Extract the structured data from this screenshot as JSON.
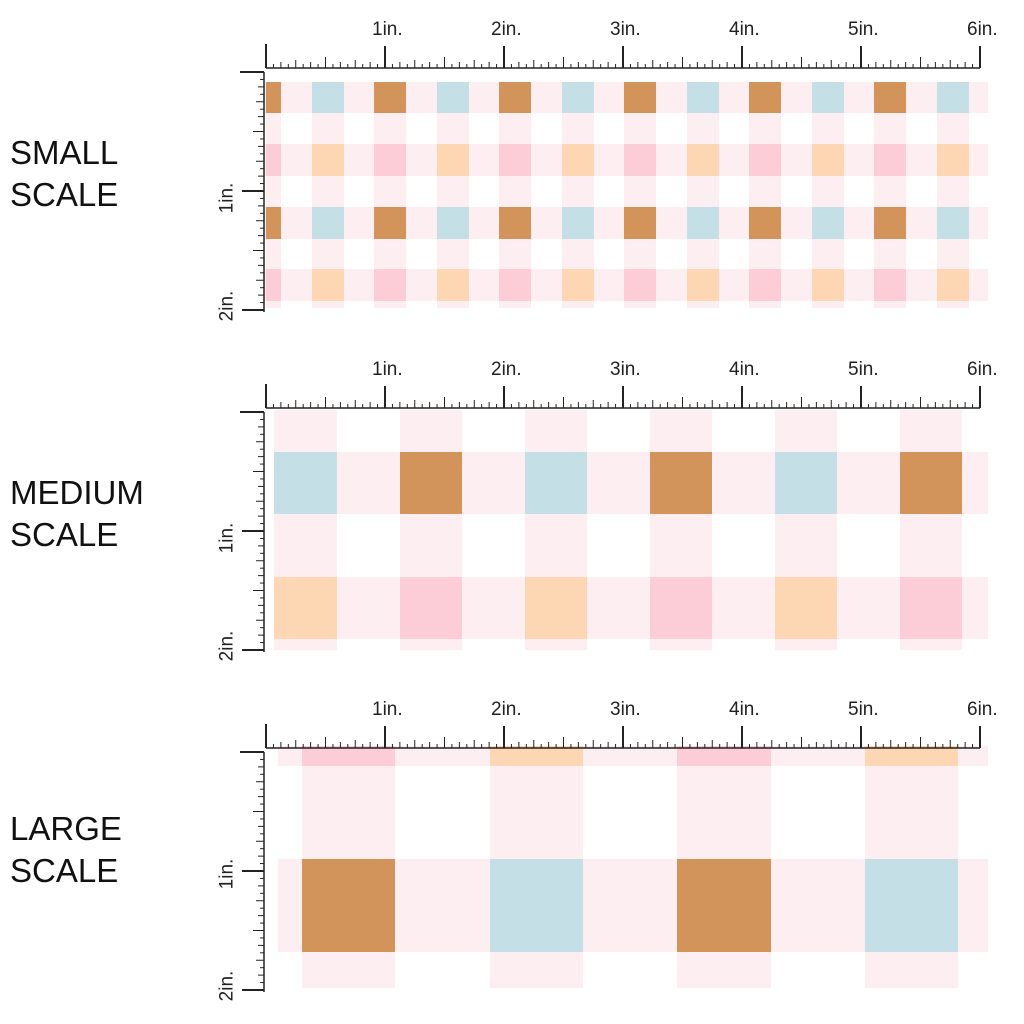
{
  "sections": [
    {
      "key": "small",
      "label_line1": "SMALL",
      "label_line2": "SCALE",
      "ruler_labels_top": [
        "1in.",
        "2in.",
        "3in.",
        "4in.",
        "5in.",
        "6in."
      ],
      "ruler_labels_side": [
        "1in.",
        "2in."
      ]
    },
    {
      "key": "medium",
      "label_line1": "MEDIUM",
      "label_line2": "SCALE",
      "ruler_labels_top": [
        "1in.",
        "2in.",
        "3in.",
        "4in.",
        "5in.",
        "6in."
      ],
      "ruler_labels_side": [
        "1in.",
        "2in."
      ]
    },
    {
      "key": "large",
      "label_line1": "LARGE",
      "label_line2": "SCALE",
      "ruler_labels_top": [
        "1in.",
        "2in.",
        "3in.",
        "4in.",
        "5in.",
        "6in."
      ],
      "ruler_labels_side": [
        "1in.",
        "2in."
      ]
    }
  ],
  "pattern": {
    "name": "gingham-plaid",
    "colors": {
      "base": "#ffffff",
      "stripe": "#fdeef1",
      "caramel": "#d2945a",
      "blue": "#c5dfe6",
      "peach": "#fdd6b3",
      "pink": "#fccdd7",
      "ink": "#222222"
    }
  }
}
